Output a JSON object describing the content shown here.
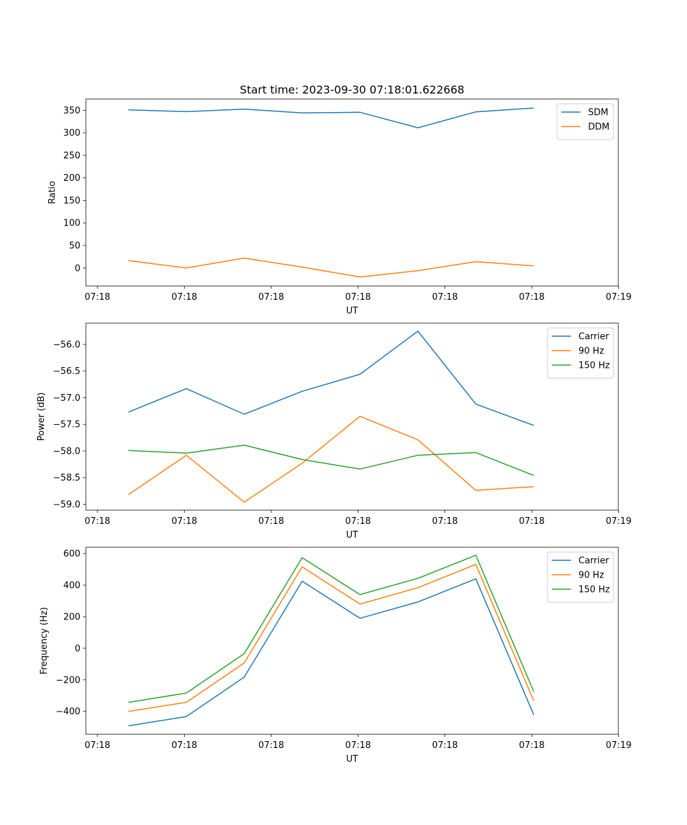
{
  "figure_title": "Start time: 2023-09-30 07:18:01.622668",
  "chart_data": [
    {
      "type": "line",
      "id": "ratio",
      "ylabel": "Ratio",
      "xlabel": "UT",
      "x": [
        1,
        2,
        3,
        4,
        5,
        6,
        7,
        8
      ],
      "xlim": [
        0.266,
        9.46
      ],
      "xticks": [
        0.466,
        1.966,
        3.466,
        4.966,
        6.466,
        7.966,
        9.466
      ],
      "xtick_labels": [
        "07:18",
        "07:18",
        "07:18",
        "07:18",
        "07:18",
        "07:18",
        "07:19"
      ],
      "ylim": [
        -40,
        375
      ],
      "yticks": [
        0,
        50,
        100,
        150,
        200,
        250,
        300,
        350
      ],
      "ytick_labels": [
        "0",
        "50",
        "100",
        "150",
        "200",
        "250",
        "300",
        "350"
      ],
      "legend": "upper right",
      "series": [
        {
          "name": "SDM",
          "color": "#1f77b4",
          "values": [
            351,
            347,
            352.5,
            344,
            345.5,
            311,
            346.5,
            355
          ]
        },
        {
          "name": "DDM",
          "color": "#ff7f0e",
          "values": [
            16.5,
            0,
            22,
            2,
            -20,
            -6,
            14,
            4.5
          ]
        }
      ]
    },
    {
      "type": "line",
      "id": "power",
      "ylabel": "Power (dB)",
      "xlabel": "UT",
      "x": [
        1,
        2,
        3,
        4,
        5,
        6,
        7,
        8
      ],
      "xlim": [
        0.266,
        9.46
      ],
      "xticks": [
        0.466,
        1.966,
        3.466,
        4.966,
        6.466,
        7.966,
        9.466
      ],
      "xtick_labels": [
        "07:18",
        "07:18",
        "07:18",
        "07:18",
        "07:18",
        "07:18",
        "07:19"
      ],
      "ylim": [
        -59.11,
        -55.6
      ],
      "yticks": [
        -59.0,
        -58.5,
        -58.0,
        -57.5,
        -57.0,
        -56.5,
        -56.0
      ],
      "ytick_labels": [
        "−59.0",
        "−58.5",
        "−58.0",
        "−57.5",
        "−57.0",
        "−56.5",
        "−56.0"
      ],
      "legend": "upper right",
      "series": [
        {
          "name": "Carrier",
          "color": "#1f77b4",
          "values": [
            -57.27,
            -56.83,
            -57.31,
            -56.88,
            -56.56,
            -55.75,
            -57.12,
            -57.52
          ]
        },
        {
          "name": "90 Hz",
          "color": "#ff7f0e",
          "values": [
            -58.82,
            -58.08,
            -58.96,
            -58.23,
            -57.35,
            -57.79,
            -58.74,
            -58.67
          ]
        },
        {
          "name": "150 Hz",
          "color": "#2ca02c",
          "values": [
            -57.99,
            -58.04,
            -57.89,
            -58.16,
            -58.34,
            -58.08,
            -58.03,
            -58.46
          ]
        }
      ]
    },
    {
      "type": "line",
      "id": "frequency",
      "ylabel": "Frequency (Hz)",
      "xlabel": "UT",
      "x": [
        1,
        2,
        3,
        4,
        5,
        6,
        7,
        8
      ],
      "xlim": [
        0.266,
        9.46
      ],
      "xticks": [
        0.466,
        1.966,
        3.466,
        4.966,
        6.466,
        7.966,
        9.466
      ],
      "xtick_labels": [
        "07:18",
        "07:18",
        "07:18",
        "07:18",
        "07:18",
        "07:18",
        "07:19"
      ],
      "ylim": [
        -545,
        640
      ],
      "yticks": [
        -400,
        -200,
        0,
        200,
        400,
        600
      ],
      "ytick_labels": [
        "−400",
        "−200",
        "0",
        "200",
        "400",
        "600"
      ],
      "legend": "upper right",
      "series": [
        {
          "name": "Carrier",
          "color": "#1f77b4",
          "values": [
            -492,
            -433,
            -183,
            425,
            190,
            293,
            440,
            -422
          ]
        },
        {
          "name": "90 Hz",
          "color": "#ff7f0e",
          "values": [
            -400,
            -343,
            -93,
            516,
            280,
            384,
            531,
            -333
          ]
        },
        {
          "name": "150 Hz",
          "color": "#2ca02c",
          "values": [
            -343,
            -284,
            -34,
            574,
            340,
            443,
            589,
            -275
          ]
        }
      ]
    }
  ]
}
